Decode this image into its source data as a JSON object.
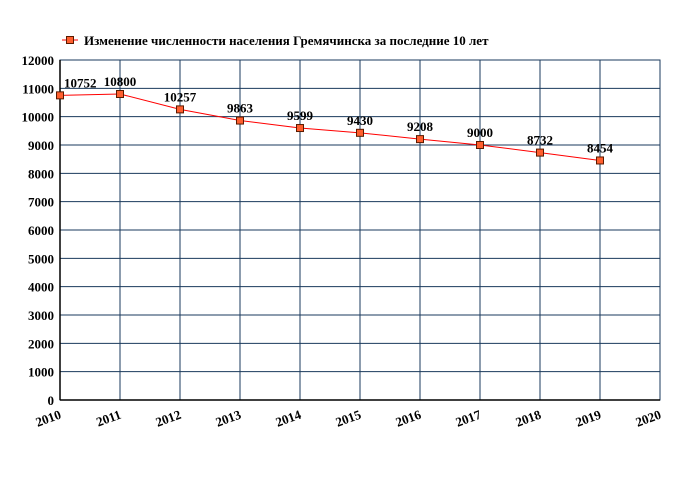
{
  "chart_data": {
    "type": "line",
    "x": [
      2010,
      2011,
      2012,
      2013,
      2014,
      2015,
      2016,
      2017,
      2018,
      2019
    ],
    "series": [
      {
        "name": "Изменение численности населения Гремячинска за последние 10 лет",
        "color": "#ff0000",
        "marker_color": "#ff5f2e",
        "values": [
          10752,
          10800,
          10257,
          9863,
          9599,
          9430,
          9208,
          9000,
          8732,
          8454
        ]
      }
    ],
    "xlim": [
      2010,
      2020
    ],
    "xticks": [
      2010,
      2011,
      2012,
      2013,
      2014,
      2015,
      2016,
      2017,
      2018,
      2019,
      2020
    ],
    "ylim": [
      0,
      12000
    ],
    "yticks": [
      0,
      1000,
      2000,
      3000,
      4000,
      5000,
      6000,
      7000,
      8000,
      9000,
      10000,
      11000,
      12000
    ],
    "grid": true,
    "legend": "top"
  }
}
